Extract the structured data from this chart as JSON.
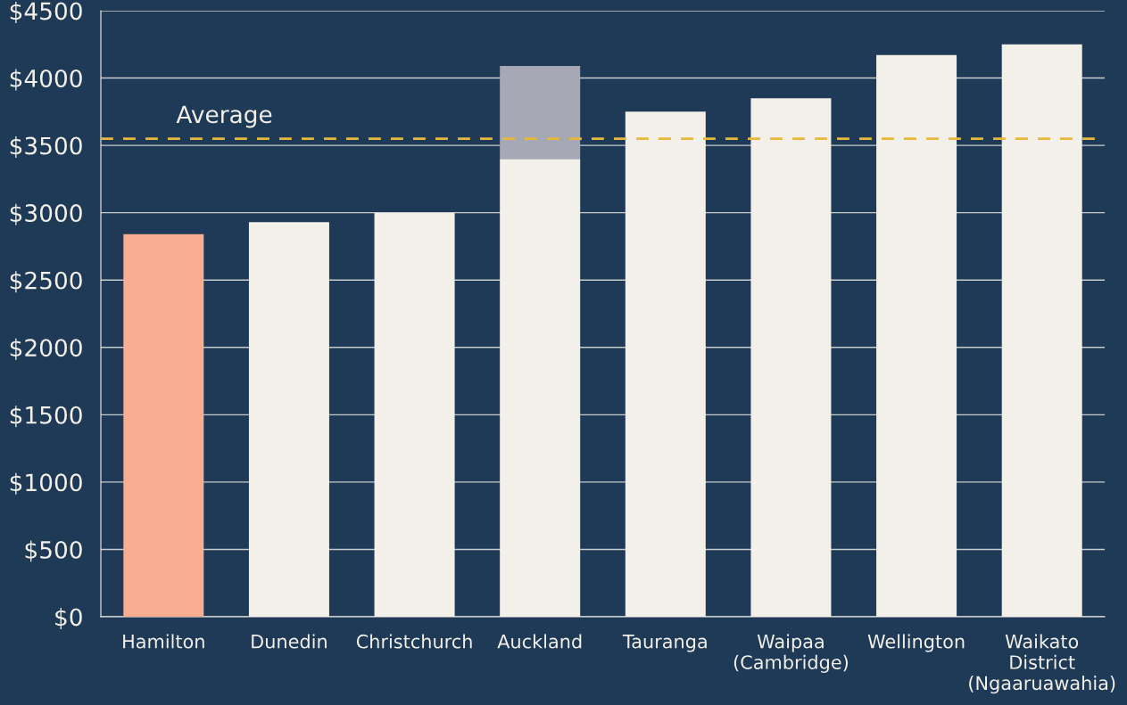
{
  "chart_data": {
    "type": "bar",
    "stacked": true,
    "categories": [
      "Hamilton",
      "Dunedin",
      "Christchurch",
      "Auckland",
      "Tauranga",
      "Waipaa\n(Cambridge)",
      "Wellington",
      "Waikato\nDistrict\n(Ngaaruawahia)"
    ],
    "series": [
      {
        "colors": [
          "#f9ae91",
          "#f3f0e9",
          "#f3f0e9",
          "#f3f0e9",
          "#f3f0e9",
          "#f3f0e9",
          "#f3f0e9",
          "#f3f0e9"
        ],
        "values": [
          2840,
          2930,
          3000,
          3400,
          3750,
          3850,
          4170,
          4250
        ]
      },
      {
        "color": "#a6a8b5",
        "values": [
          null,
          null,
          null,
          690,
          null,
          null,
          null,
          null
        ]
      }
    ],
    "ylim": [
      0,
      4500
    ],
    "yticks": [
      {
        "value": 0,
        "label": "$0"
      },
      {
        "value": 500,
        "label": "$500"
      },
      {
        "value": 1000,
        "label": "$1000"
      },
      {
        "value": 1500,
        "label": "$1500"
      },
      {
        "value": 2000,
        "label": "$2000"
      },
      {
        "value": 2500,
        "label": "$2500"
      },
      {
        "value": 3000,
        "label": "$3000"
      },
      {
        "value": 3500,
        "label": "$3500"
      },
      {
        "value": 4000,
        "label": "$4000"
      },
      {
        "value": 4500,
        "label": "$4500"
      }
    ],
    "grid": "y",
    "ref_lines": [
      {
        "axis": "y",
        "value": 3550,
        "label": "Average",
        "color": "#e8b83a",
        "line_style": "dashed"
      }
    ]
  }
}
